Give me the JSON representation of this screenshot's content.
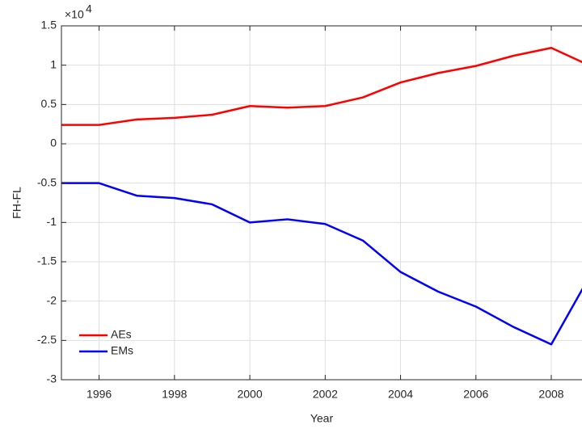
{
  "chart_data": {
    "type": "line",
    "x_label": "Year",
    "y_label": "FH-FL",
    "y_exponent_base": "×10",
    "y_exponent": "4",
    "x": [
      1995,
      1996,
      1997,
      1998,
      1999,
      2000,
      2001,
      2002,
      2003,
      2004,
      2005,
      2006,
      2007,
      2008,
      2009
    ],
    "series": [
      {
        "name": "AEs",
        "color": "#ff0000",
        "values": [
          0.24,
          0.24,
          0.31,
          0.33,
          0.37,
          0.48,
          0.46,
          0.48,
          0.59,
          0.78,
          0.9,
          0.99,
          1.12,
          1.22,
          1.0
        ]
      },
      {
        "name": "EMs",
        "color": "#0000ff",
        "values": [
          -0.5,
          -0.5,
          -0.66,
          -0.69,
          -0.77,
          -1.0,
          -0.96,
          -1.02,
          -1.23,
          -1.63,
          -1.88,
          -2.07,
          -2.33,
          -2.55,
          -1.7
        ]
      }
    ],
    "xlim": [
      1995,
      2009
    ],
    "xticks": [
      1996,
      1998,
      2000,
      2002,
      2004,
      2006,
      2008
    ],
    "ylim": [
      -3,
      1.5
    ],
    "yticks": [
      -3,
      -2.5,
      -2,
      -1.5,
      -1,
      -0.5,
      0,
      0.5,
      1,
      1.5
    ],
    "grid": true,
    "legend": "lower left"
  }
}
